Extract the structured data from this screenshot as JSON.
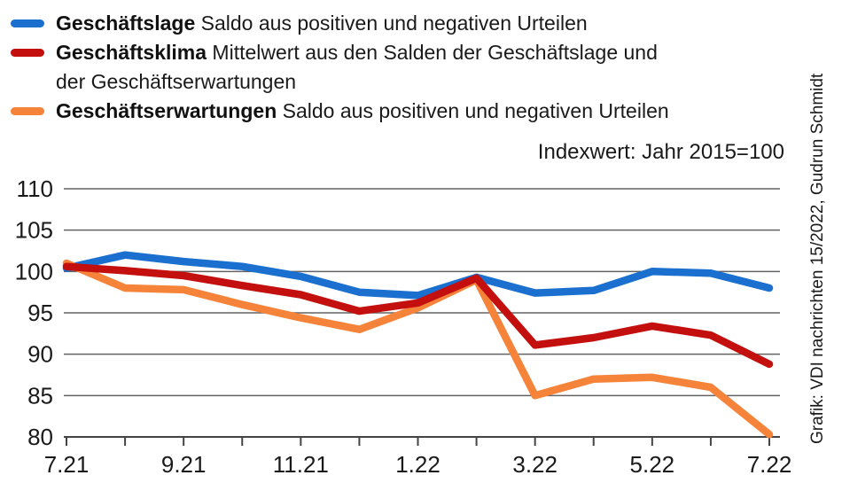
{
  "legend": {
    "items": [
      {
        "term": "Geschäftslage",
        "desc": "Saldo aus positiven und negativen Urteilen"
      },
      {
        "term": "Geschäftsklima",
        "desc": "Mittelwert aus den Salden der Geschäftslage und",
        "desc2": "der Geschäftserwartungen"
      },
      {
        "term": "Geschäftserwartungen",
        "desc": "Saldo aus positiven und negativen Urteilen"
      }
    ]
  },
  "credit": "Grafik: VDI nachrichten 15/2022, Gudrun Schmidt",
  "chart_data": {
    "type": "line",
    "note": "Indexwert: Jahr 2015=100",
    "x_labels_all": [
      "7.21",
      "8.21",
      "9.21",
      "10.21",
      "11.21",
      "12.21",
      "1.22",
      "2.22",
      "3.22",
      "4.22",
      "5.22",
      "6.22",
      "7.22"
    ],
    "x_tick_labels": [
      "7.21",
      "9.21",
      "11.21",
      "1.22",
      "3.22",
      "5.22",
      "7.22"
    ],
    "y_ticks": [
      80,
      85,
      90,
      95,
      100,
      105,
      110
    ],
    "ylim": [
      80,
      110
    ],
    "grid": true,
    "legend_position": "top-left",
    "series": [
      {
        "name": "Geschäftslage",
        "color": "#1a6fcf",
        "values": [
          100.4,
          102.0,
          101.2,
          100.6,
          99.4,
          97.5,
          97.1,
          99.3,
          97.4,
          97.7,
          100.0,
          99.8,
          98.0
        ]
      },
      {
        "name": "Geschäftsklima",
        "color": "#c40f0f",
        "values": [
          100.6,
          100.1,
          99.5,
          98.3,
          97.2,
          95.2,
          96.2,
          99.2,
          91.1,
          92.0,
          93.4,
          92.3,
          88.8
        ]
      },
      {
        "name": "Geschäftserwartungen",
        "color": "#f6833a",
        "values": [
          101.0,
          98.0,
          97.8,
          96.0,
          94.4,
          93.0,
          95.6,
          99.0,
          85.0,
          87.0,
          87.2,
          86.0,
          80.3
        ]
      }
    ]
  }
}
